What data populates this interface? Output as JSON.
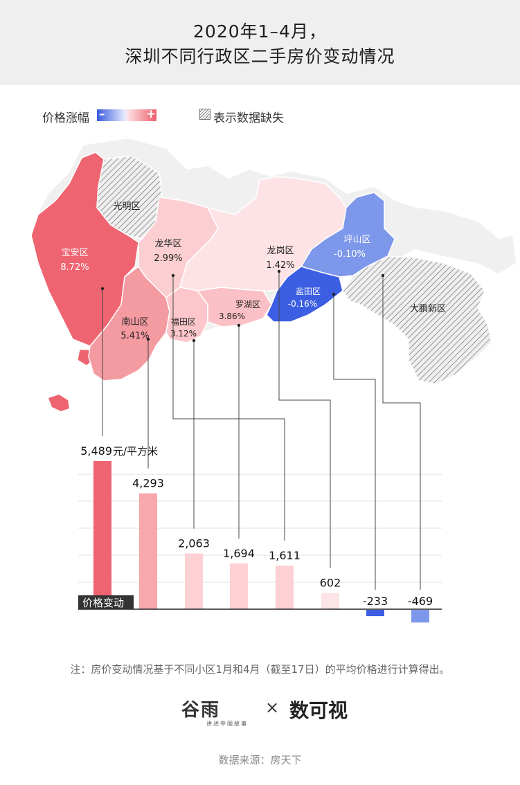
{
  "title": {
    "line1": "2020年1–4月，",
    "line2": "深圳不同行政区二手房价变动情况"
  },
  "legend": {
    "price_change_label": "价格涨幅",
    "minus_sign": "–",
    "plus_sign": "+",
    "missing_label": "表示数据缺失"
  },
  "colors": {
    "pos_strong": "#ee6470",
    "pos_mid": "#f8a8ad",
    "pos_light": "#fdd0d3",
    "pos_pale": "#fde5e7",
    "neg_strong": "#3c5ee2",
    "neg_mid": "#7d97ea",
    "missing": "#eeeeee"
  },
  "districts": [
    {
      "name": "宝安区",
      "change": "8.72%"
    },
    {
      "name": "光明区",
      "change": ""
    },
    {
      "name": "龙华区",
      "change": "2.99%"
    },
    {
      "name": "南山区",
      "change": "5.41%"
    },
    {
      "name": "福田区",
      "change": "3.12%"
    },
    {
      "name": "罗湖区",
      "change": "3.86%"
    },
    {
      "name": "龙岗区",
      "change": "1.42%"
    },
    {
      "name": "坪山区",
      "change": "-0.10%"
    },
    {
      "name": "盐田区",
      "change": "-0.16%"
    },
    {
      "name": "大鹏新区",
      "change": ""
    }
  ],
  "chart_data": {
    "type": "bar",
    "categories": [
      "宝安区",
      "南山区",
      "福田区",
      "罗湖区",
      "龙华区",
      "龙岗区",
      "盐田区",
      "坪山区"
    ],
    "values": [
      5489,
      4293,
      2063,
      1694,
      1611,
      602,
      -233,
      -469
    ],
    "value_labels": [
      "5,489",
      "4,293",
      "2,063",
      "1,694",
      "1,611",
      "602",
      "-233",
      "-469"
    ],
    "unit": "元/平方米",
    "axis_label": "价格变动",
    "ylim": [
      -600,
      5500
    ],
    "grid": true
  },
  "note": "注：房价变动情况基于不同小区1月和4月（截至17日）的平均价格进行计算得出。",
  "source": "数据来源：房天下",
  "brand": {
    "left": "谷雨",
    "left_sub": "讲述中国故事",
    "times": "×",
    "right": "数可视"
  }
}
